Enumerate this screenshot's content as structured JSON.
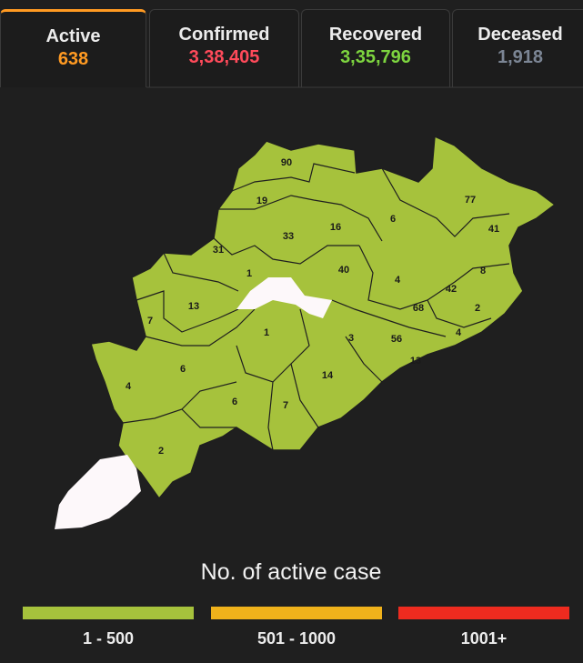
{
  "tabs": [
    {
      "label": "Active",
      "value": "638"
    },
    {
      "label": "Confirmed",
      "value": "3,38,405"
    },
    {
      "label": "Recovered",
      "value": "3,35,796"
    },
    {
      "label": "Deceased",
      "value": "1,918"
    }
  ],
  "map": {
    "district_values": [
      90,
      19,
      33,
      16,
      6,
      77,
      41,
      31,
      1,
      40,
      4,
      8,
      42,
      13,
      68,
      2,
      7,
      1,
      3,
      56,
      4,
      13,
      6,
      14,
      4,
      6,
      7,
      2
    ]
  },
  "legend": {
    "title": "No. of active case",
    "items": [
      {
        "label": "1 - 500",
        "color": "#a6c23c"
      },
      {
        "label": "501 - 1000",
        "color": "#f0b21b"
      },
      {
        "label": "1001+",
        "color": "#ee2b1f"
      }
    ]
  }
}
